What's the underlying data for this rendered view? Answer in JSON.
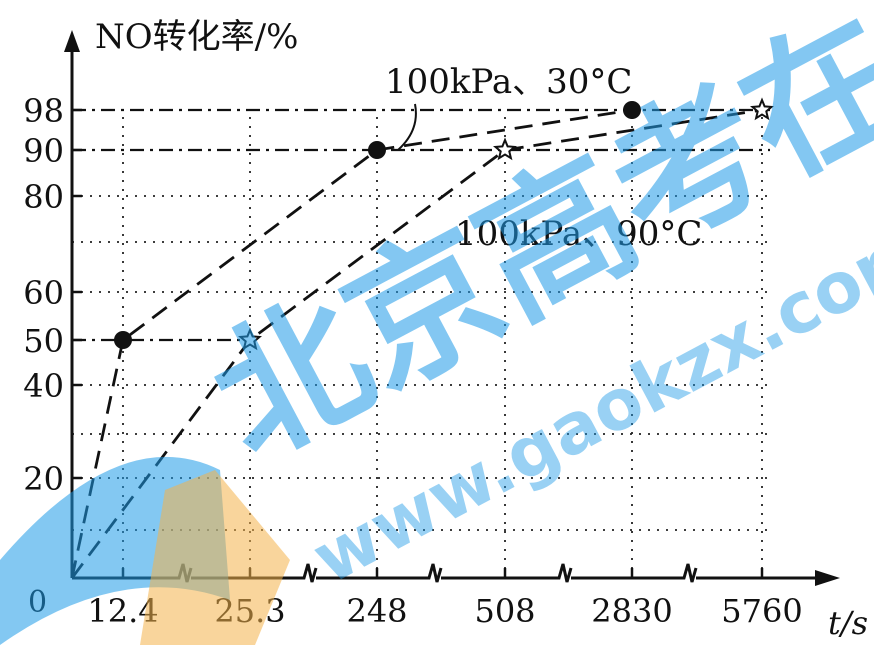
{
  "chart_data": {
    "type": "line",
    "title": "",
    "ylabel": "NO转化率/%",
    "xlabel": "t/s",
    "ylim": [
      0,
      100
    ],
    "x_axis_broken": true,
    "grid": "dotted",
    "origin_label": "0",
    "categories": [
      "12.4",
      "25.3",
      "248",
      "508",
      "2830",
      "5760"
    ],
    "y_ticks": [
      "20",
      "40",
      "50",
      "60",
      "80",
      "90",
      "98"
    ],
    "series": [
      {
        "name": "100kPa、30°C",
        "marker": "filled-circle",
        "color": "#111111",
        "points": [
          {
            "x": "0",
            "y": 0
          },
          {
            "x": "12.4",
            "y": 50
          },
          {
            "x": "248",
            "y": 90
          },
          {
            "x": "2830",
            "y": 98
          }
        ]
      },
      {
        "name": "100kPa、90°C",
        "marker": "open-star",
        "color": "#111111",
        "points": [
          {
            "x": "0",
            "y": 0
          },
          {
            "x": "25.3",
            "y": 50
          },
          {
            "x": "508",
            "y": 90
          },
          {
            "x": "5760",
            "y": 98
          }
        ]
      }
    ],
    "reference_lines_y": [
      98,
      90,
      50
    ]
  },
  "watermark": {
    "text_cn": "北京高考在线",
    "text_url": "www.gaokzx.com",
    "color": "#1e9be8"
  }
}
